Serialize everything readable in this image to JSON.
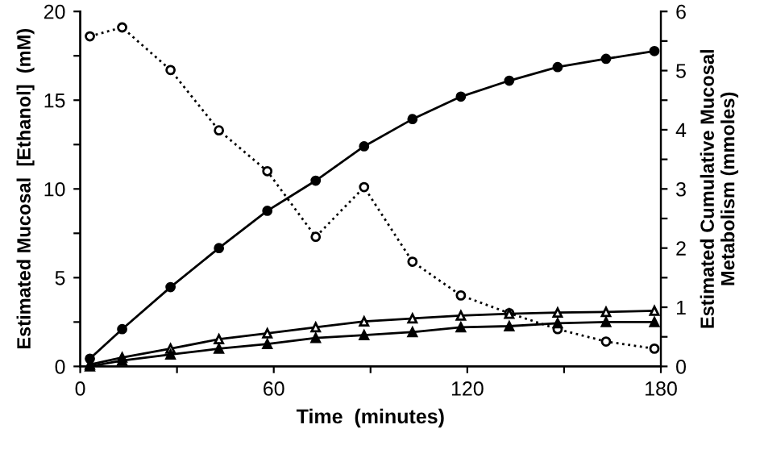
{
  "chart_data": {
    "type": "line",
    "xlabel": "Time  (minutes)",
    "ylabel": "Estimated Mucosal  [Ethanol]  (mM)",
    "y2label": "Estimated Cumulative Mucosal\nMetabolism (mmoles)",
    "x": [
      3,
      13,
      28,
      43,
      58,
      73,
      88,
      103,
      118,
      133,
      148,
      163,
      178
    ],
    "xlim": [
      0,
      180
    ],
    "xticks": [
      0,
      {
        "value": 30,
        "label": null
      },
      60,
      {
        "value": 90,
        "label": null
      },
      120,
      {
        "value": 150,
        "label": null
      },
      180
    ],
    "ylim": [
      0,
      20
    ],
    "yticks": [
      0,
      {
        "value": 2.5,
        "label": null
      },
      5,
      {
        "value": 7.5,
        "label": null
      },
      10,
      {
        "value": 12.5,
        "label": null
      },
      15,
      {
        "value": 17.5,
        "label": null
      },
      20
    ],
    "y2lim": [
      0,
      6
    ],
    "y2ticks": [
      0,
      {
        "value": 0.5,
        "label": null
      },
      1,
      {
        "value": 1.5,
        "label": null
      },
      2,
      {
        "value": 2.5,
        "label": null
      },
      3,
      {
        "value": 3.5,
        "label": null
      },
      4,
      {
        "value": 4.5,
        "label": null
      },
      5,
      {
        "value": 5.5,
        "label": null
      },
      6
    ],
    "grid": false,
    "legend": false,
    "series": [
      {
        "color": "#000000",
        "marker": "circle_open",
        "line_style": "dotted",
        "axis": "y",
        "values": [
          18.6,
          19.1,
          16.7,
          13.3,
          11.0,
          7.3,
          10.1,
          5.9,
          4.0,
          3.0,
          2.1,
          1.4,
          1.0
        ]
      },
      {
        "color": "#000000",
        "marker": "circle",
        "line_style": "solid",
        "axis": "y2",
        "values": [
          0.13,
          0.63,
          1.34,
          2.0,
          2.63,
          3.14,
          3.72,
          4.18,
          4.56,
          4.83,
          5.06,
          5.2,
          5.33
        ]
      },
      {
        "color": "#000000",
        "marker": "triangle_open",
        "line_style": "solid",
        "axis": "y2",
        "values": [
          0.03,
          0.15,
          0.3,
          0.46,
          0.56,
          0.66,
          0.76,
          0.81,
          0.86,
          0.89,
          0.91,
          0.92,
          0.94
        ]
      },
      {
        "color": "#000000",
        "marker": "triangle",
        "line_style": "solid",
        "axis": "y2",
        "values": [
          0.0,
          0.1,
          0.2,
          0.3,
          0.38,
          0.48,
          0.53,
          0.58,
          0.66,
          0.68,
          0.73,
          0.75,
          0.75
        ]
      }
    ]
  }
}
